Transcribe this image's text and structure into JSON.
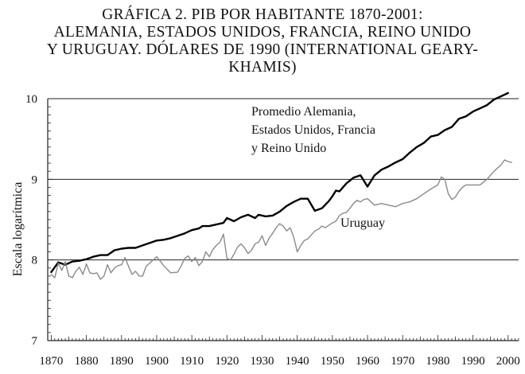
{
  "chart_data": {
    "type": "line",
    "title_lines": [
      "GRÁFICA 2. PIB POR HABITANTE 1870-2001:",
      "ALEMANIA, ESTADOS UNIDOS, FRANCIA, REINO UNIDO",
      "Y URUGUAY. DÓLARES DE 1990 (INTERNATIONAL GEARY-",
      "KHAMIS)"
    ],
    "ylabel": "Escala logarítmica",
    "xlabel": "",
    "xlim": [
      1869,
      2003
    ],
    "ylim": [
      7,
      10
    ],
    "x_ticks": [
      1870,
      1880,
      1890,
      1900,
      1910,
      1920,
      1930,
      1940,
      1950,
      1960,
      1970,
      1980,
      1990,
      2000
    ],
    "y_ticks": [
      7,
      8,
      9,
      10
    ],
    "grid": "horizontal",
    "series": [
      {
        "name": "Promedio Alemania, Estados Unidos, Francia y Reino Unido",
        "label_lines": [
          "Promedio Alemania,",
          "Estados Unidos, Francia",
          "y Reino Unido"
        ],
        "color": "#000000",
        "x": [
          1870,
          1872,
          1874,
          1876,
          1878,
          1880,
          1882,
          1884,
          1886,
          1888,
          1890,
          1892,
          1894,
          1896,
          1898,
          1900,
          1902,
          1904,
          1906,
          1908,
          1910,
          1912,
          1913,
          1915,
          1917,
          1919,
          1920,
          1922,
          1924,
          1926,
          1928,
          1929,
          1931,
          1933,
          1935,
          1937,
          1939,
          1941,
          1943,
          1945,
          1947,
          1949,
          1950,
          1951,
          1952,
          1954,
          1956,
          1958,
          1960,
          1962,
          1964,
          1966,
          1968,
          1970,
          1972,
          1974,
          1976,
          1978,
          1980,
          1982,
          1984,
          1986,
          1988,
          1990,
          1992,
          1994,
          1996,
          1998,
          2000
        ],
        "values": [
          7.85,
          7.97,
          7.94,
          7.98,
          7.99,
          8.01,
          8.04,
          8.06,
          8.06,
          8.12,
          8.14,
          8.15,
          8.15,
          8.18,
          8.21,
          8.24,
          8.25,
          8.27,
          8.3,
          8.33,
          8.37,
          8.39,
          8.42,
          8.42,
          8.44,
          8.46,
          8.52,
          8.48,
          8.53,
          8.56,
          8.52,
          8.56,
          8.54,
          8.55,
          8.6,
          8.67,
          8.72,
          8.76,
          8.76,
          8.61,
          8.64,
          8.73,
          8.79,
          8.86,
          8.85,
          8.95,
          9.02,
          9.05,
          8.91,
          9.05,
          9.12,
          9.16,
          9.21,
          9.25,
          9.33,
          9.4,
          9.45,
          9.53,
          9.55,
          9.61,
          9.65,
          9.75,
          9.78,
          9.84,
          9.88,
          9.92,
          9.99,
          10.03,
          10.07
        ]
      },
      {
        "name": "Uruguay",
        "label_lines": [
          "Uruguay"
        ],
        "color": "#8a8a8a",
        "x": [
          1870,
          1871,
          1872,
          1873,
          1874,
          1875,
          1876,
          1877,
          1878,
          1879,
          1880,
          1881,
          1882,
          1883,
          1884,
          1885,
          1886,
          1887,
          1888,
          1889,
          1890,
          1891,
          1892,
          1893,
          1894,
          1895,
          1896,
          1897,
          1898,
          1899,
          1900,
          1902,
          1904,
          1906,
          1907,
          1908,
          1909,
          1910,
          1911,
          1912,
          1913,
          1914,
          1915,
          1916,
          1917,
          1918,
          1919,
          1920,
          1921,
          1922,
          1923,
          1924,
          1925,
          1926,
          1927,
          1928,
          1929,
          1930,
          1931,
          1932,
          1933,
          1934,
          1935,
          1936,
          1937,
          1938,
          1939,
          1940,
          1941,
          1942,
          1943,
          1944,
          1945,
          1946,
          1947,
          1948,
          1949,
          1950,
          1951,
          1952,
          1953,
          1954,
          1955,
          1956,
          1957,
          1958,
          1959,
          1960,
          1962,
          1964,
          1966,
          1968,
          1970,
          1972,
          1974,
          1976,
          1978,
          1980,
          1981,
          1982,
          1983,
          1984,
          1985,
          1986,
          1987,
          1988,
          1990,
          1992,
          1994,
          1996,
          1998,
          1999,
          2000,
          2001
        ],
        "values": [
          7.82,
          7.78,
          7.96,
          7.87,
          7.98,
          7.8,
          7.78,
          7.86,
          7.91,
          7.82,
          7.95,
          7.84,
          7.83,
          7.84,
          7.76,
          7.8,
          7.94,
          7.84,
          7.9,
          7.93,
          7.94,
          8.03,
          7.92,
          7.82,
          7.86,
          7.8,
          7.8,
          7.92,
          7.96,
          8.0,
          8.04,
          7.93,
          7.84,
          7.85,
          7.93,
          8.02,
          8.05,
          7.98,
          8.03,
          7.93,
          7.98,
          8.1,
          8.04,
          8.13,
          8.18,
          8.22,
          8.32,
          8.02,
          8.0,
          8.07,
          8.16,
          8.2,
          8.15,
          8.08,
          8.12,
          8.2,
          8.22,
          8.3,
          8.18,
          8.27,
          8.33,
          8.4,
          8.45,
          8.42,
          8.36,
          8.4,
          8.28,
          8.1,
          8.18,
          8.24,
          8.26,
          8.31,
          8.36,
          8.38,
          8.42,
          8.4,
          8.43,
          8.46,
          8.48,
          8.55,
          8.58,
          8.59,
          8.64,
          8.7,
          8.74,
          8.72,
          8.75,
          8.76,
          8.68,
          8.7,
          8.68,
          8.66,
          8.7,
          8.72,
          8.76,
          8.82,
          8.88,
          8.93,
          9.03,
          9.0,
          8.82,
          8.75,
          8.78,
          8.85,
          8.9,
          8.93,
          8.93,
          8.93,
          9.0,
          9.1,
          9.18,
          9.24,
          9.22,
          9.21
        ]
      }
    ]
  }
}
